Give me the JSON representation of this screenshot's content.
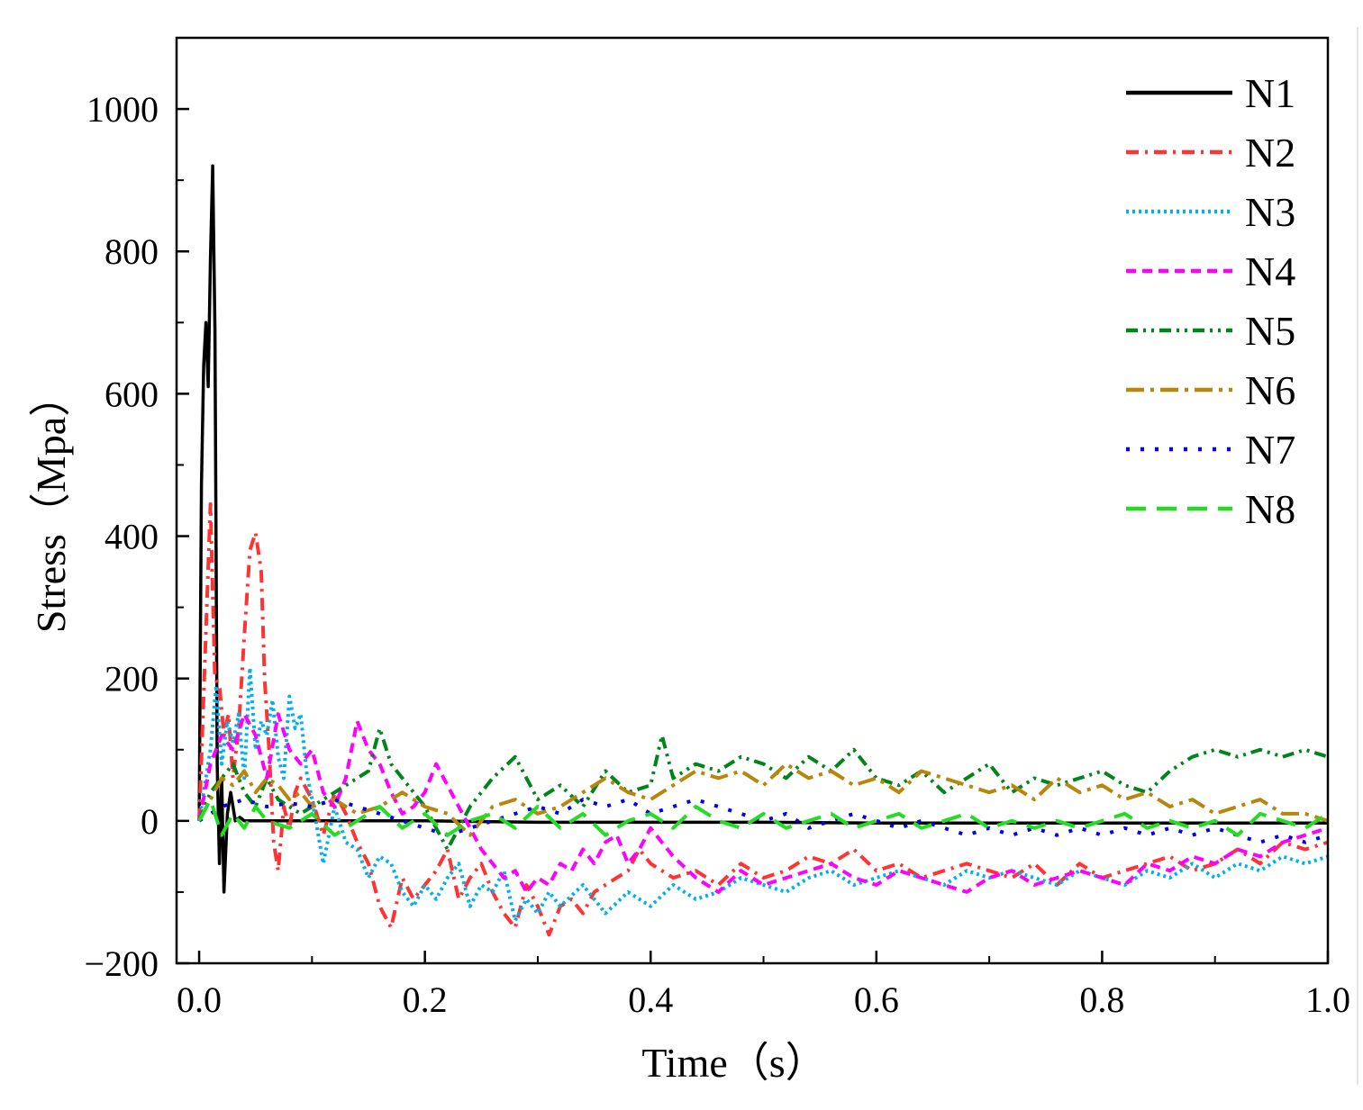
{
  "chart_data": {
    "type": "line",
    "title": "",
    "xlabel": "Time（s）",
    "ylabel": "Stress（Mpa）",
    "xlim": [
      -0.02,
      1.0
    ],
    "ylim": [
      -200,
      1100
    ],
    "x_ticks": [
      0.0,
      0.2,
      0.4,
      0.6,
      0.8,
      1.0
    ],
    "x_tick_labels": [
      "0.0",
      "0.2",
      "0.4",
      "0.6",
      "0.8",
      "1.0"
    ],
    "y_ticks": [
      -200,
      0,
      200,
      400,
      600,
      800,
      1000
    ],
    "y_tick_labels": [
      "−200",
      "0",
      "200",
      "400",
      "600",
      "800",
      "1000"
    ],
    "grid": false,
    "legend_position": "top-right",
    "series": [
      {
        "name": "N1",
        "color": "#000000",
        "dash": "solid",
        "x": [
          0.0,
          0.002,
          0.004,
          0.006,
          0.008,
          0.01,
          0.012,
          0.014,
          0.016,
          0.018,
          0.02,
          0.022,
          0.025,
          0.028,
          0.032,
          0.036,
          0.04,
          0.05,
          0.1,
          0.2,
          0.3,
          0.4,
          0.5,
          0.6,
          0.7,
          0.8,
          0.9,
          1.0
        ],
        "y": [
          0,
          470,
          640,
          700,
          610,
          790,
          920,
          690,
          80,
          -60,
          60,
          -100,
          10,
          40,
          0,
          5,
          0,
          0,
          0,
          0,
          -2,
          -2,
          -2,
          -3,
          -3,
          -3,
          -3,
          -3
        ]
      },
      {
        "name": "N2",
        "color": "#ff3333",
        "dash": "dashdot",
        "x": [
          0.0,
          0.005,
          0.01,
          0.014,
          0.018,
          0.022,
          0.026,
          0.03,
          0.035,
          0.04,
          0.045,
          0.05,
          0.055,
          0.058,
          0.062,
          0.066,
          0.07,
          0.075,
          0.08,
          0.085,
          0.09,
          0.1,
          0.11,
          0.12,
          0.13,
          0.14,
          0.15,
          0.16,
          0.17,
          0.18,
          0.19,
          0.2,
          0.21,
          0.22,
          0.23,
          0.24,
          0.25,
          0.26,
          0.27,
          0.28,
          0.29,
          0.3,
          0.31,
          0.32,
          0.33,
          0.34,
          0.35,
          0.36,
          0.37,
          0.38,
          0.39,
          0.4,
          0.42,
          0.44,
          0.46,
          0.48,
          0.5,
          0.52,
          0.54,
          0.56,
          0.58,
          0.6,
          0.62,
          0.64,
          0.66,
          0.68,
          0.7,
          0.72,
          0.74,
          0.76,
          0.78,
          0.8,
          0.82,
          0.84,
          0.86,
          0.88,
          0.9,
          0.92,
          0.94,
          0.96,
          0.98,
          1.0
        ],
        "y": [
          0,
          220,
          445,
          200,
          190,
          120,
          150,
          60,
          130,
          260,
          380,
          405,
          350,
          200,
          100,
          -30,
          -70,
          20,
          -10,
          40,
          60,
          30,
          -20,
          40,
          10,
          -30,
          -60,
          -120,
          -150,
          -80,
          -110,
          -90,
          -70,
          -40,
          -110,
          -80,
          -60,
          -100,
          -130,
          -150,
          -90,
          -120,
          -160,
          -120,
          -110,
          -130,
          -100,
          -90,
          -80,
          -70,
          -40,
          -60,
          -80,
          -70,
          -90,
          -60,
          -80,
          -70,
          -50,
          -60,
          -40,
          -70,
          -60,
          -80,
          -70,
          -60,
          -70,
          -80,
          -60,
          -90,
          -60,
          -80,
          -70,
          -60,
          -50,
          -70,
          -60,
          -40,
          -60,
          -30,
          -40,
          -30
        ]
      },
      {
        "name": "N3",
        "color": "#00b0f0",
        "dash": "dot",
        "x": [
          0.0,
          0.005,
          0.01,
          0.015,
          0.02,
          0.025,
          0.03,
          0.035,
          0.04,
          0.045,
          0.05,
          0.055,
          0.06,
          0.065,
          0.07,
          0.075,
          0.08,
          0.085,
          0.09,
          0.095,
          0.1,
          0.11,
          0.12,
          0.13,
          0.14,
          0.15,
          0.16,
          0.17,
          0.18,
          0.19,
          0.2,
          0.21,
          0.22,
          0.23,
          0.24,
          0.25,
          0.26,
          0.27,
          0.28,
          0.29,
          0.3,
          0.31,
          0.32,
          0.34,
          0.36,
          0.38,
          0.4,
          0.42,
          0.44,
          0.46,
          0.48,
          0.5,
          0.52,
          0.54,
          0.56,
          0.58,
          0.6,
          0.62,
          0.64,
          0.66,
          0.68,
          0.7,
          0.72,
          0.74,
          0.76,
          0.78,
          0.8,
          0.82,
          0.84,
          0.86,
          0.88,
          0.9,
          0.92,
          0.94,
          0.96,
          0.98,
          1.0
        ],
        "y": [
          0,
          50,
          100,
          190,
          80,
          140,
          110,
          150,
          60,
          215,
          100,
          140,
          120,
          170,
          90,
          60,
          175,
          130,
          150,
          70,
          30,
          -60,
          20,
          -30,
          -40,
          -80,
          -50,
          -60,
          -100,
          -120,
          -90,
          -110,
          -80,
          -60,
          -120,
          -90,
          -100,
          -70,
          -140,
          -110,
          -130,
          -100,
          -120,
          -90,
          -130,
          -100,
          -120,
          -90,
          -110,
          -100,
          -80,
          -90,
          -100,
          -80,
          -70,
          -90,
          -80,
          -70,
          -80,
          -90,
          -70,
          -80,
          -70,
          -80,
          -90,
          -70,
          -80,
          -90,
          -70,
          -80,
          -60,
          -80,
          -60,
          -70,
          -50,
          -60,
          -50
        ]
      },
      {
        "name": "N4",
        "color": "#ff00ff",
        "dash": "dash",
        "x": [
          0.0,
          0.01,
          0.02,
          0.03,
          0.04,
          0.05,
          0.06,
          0.07,
          0.08,
          0.09,
          0.1,
          0.11,
          0.12,
          0.13,
          0.14,
          0.15,
          0.16,
          0.17,
          0.18,
          0.19,
          0.2,
          0.21,
          0.22,
          0.23,
          0.24,
          0.25,
          0.26,
          0.27,
          0.28,
          0.29,
          0.3,
          0.31,
          0.32,
          0.33,
          0.34,
          0.35,
          0.36,
          0.37,
          0.38,
          0.39,
          0.4,
          0.42,
          0.44,
          0.46,
          0.48,
          0.5,
          0.52,
          0.54,
          0.56,
          0.58,
          0.6,
          0.62,
          0.64,
          0.66,
          0.68,
          0.7,
          0.72,
          0.74,
          0.76,
          0.78,
          0.8,
          0.82,
          0.84,
          0.86,
          0.88,
          0.9,
          0.92,
          0.94,
          0.96,
          0.98,
          1.0
        ],
        "y": [
          0,
          80,
          120,
          100,
          150,
          120,
          60,
          150,
          100,
          80,
          100,
          40,
          20,
          60,
          140,
          100,
          80,
          40,
          10,
          20,
          40,
          80,
          50,
          20,
          -10,
          -40,
          -60,
          -80,
          -70,
          -100,
          -80,
          -90,
          -60,
          -70,
          -40,
          -60,
          -30,
          -20,
          -60,
          -40,
          -10,
          -50,
          -80,
          -100,
          -70,
          -90,
          -80,
          -70,
          -60,
          -80,
          -90,
          -70,
          -80,
          -90,
          -100,
          -80,
          -70,
          -90,
          -80,
          -70,
          -80,
          -90,
          -60,
          -70,
          -50,
          -60,
          -40,
          -50,
          -30,
          -20,
          -10
        ]
      },
      {
        "name": "N5",
        "color": "#00851a",
        "dash": "dashdotdot",
        "x": [
          0.0,
          0.01,
          0.02,
          0.03,
          0.04,
          0.05,
          0.06,
          0.07,
          0.08,
          0.09,
          0.1,
          0.11,
          0.12,
          0.13,
          0.14,
          0.15,
          0.16,
          0.17,
          0.18,
          0.19,
          0.2,
          0.22,
          0.24,
          0.26,
          0.28,
          0.3,
          0.32,
          0.34,
          0.36,
          0.38,
          0.4,
          0.41,
          0.42,
          0.44,
          0.46,
          0.48,
          0.5,
          0.52,
          0.54,
          0.56,
          0.58,
          0.6,
          0.62,
          0.64,
          0.66,
          0.68,
          0.7,
          0.72,
          0.74,
          0.76,
          0.78,
          0.8,
          0.82,
          0.84,
          0.86,
          0.88,
          0.9,
          0.92,
          0.94,
          0.96,
          0.98,
          1.0
        ],
        "y": [
          0,
          40,
          60,
          80,
          40,
          20,
          60,
          30,
          20,
          10,
          20,
          30,
          40,
          50,
          60,
          70,
          130,
          80,
          60,
          40,
          20,
          -40,
          20,
          60,
          90,
          30,
          50,
          20,
          70,
          40,
          50,
          120,
          60,
          80,
          70,
          90,
          80,
          60,
          90,
          70,
          100,
          60,
          50,
          70,
          40,
          60,
          80,
          40,
          60,
          50,
          60,
          70,
          50,
          40,
          70,
          90,
          100,
          90,
          100,
          90,
          100,
          90
        ]
      },
      {
        "name": "N6",
        "color": "#b8860b",
        "dash": "longdashdot",
        "x": [
          0.0,
          0.01,
          0.02,
          0.03,
          0.04,
          0.05,
          0.06,
          0.07,
          0.08,
          0.09,
          0.1,
          0.12,
          0.14,
          0.16,
          0.18,
          0.2,
          0.22,
          0.24,
          0.26,
          0.28,
          0.3,
          0.32,
          0.34,
          0.36,
          0.38,
          0.4,
          0.42,
          0.44,
          0.46,
          0.48,
          0.5,
          0.52,
          0.54,
          0.56,
          0.58,
          0.6,
          0.62,
          0.64,
          0.66,
          0.68,
          0.7,
          0.72,
          0.74,
          0.76,
          0.78,
          0.8,
          0.82,
          0.84,
          0.86,
          0.88,
          0.9,
          0.92,
          0.94,
          0.96,
          0.98,
          1.0
        ],
        "y": [
          0,
          30,
          60,
          50,
          70,
          40,
          60,
          50,
          30,
          40,
          20,
          30,
          10,
          20,
          40,
          20,
          10,
          -20,
          20,
          30,
          10,
          20,
          40,
          60,
          40,
          30,
          50,
          70,
          60,
          70,
          50,
          80,
          60,
          70,
          50,
          60,
          40,
          70,
          60,
          50,
          40,
          50,
          30,
          60,
          40,
          50,
          30,
          40,
          20,
          30,
          10,
          20,
          30,
          10,
          10,
          0
        ]
      },
      {
        "name": "N7",
        "color": "#0000ee",
        "dash": "sparsedot",
        "x": [
          0.0,
          0.02,
          0.04,
          0.06,
          0.08,
          0.1,
          0.12,
          0.14,
          0.16,
          0.18,
          0.2,
          0.22,
          0.24,
          0.26,
          0.28,
          0.3,
          0.32,
          0.34,
          0.36,
          0.38,
          0.4,
          0.42,
          0.44,
          0.46,
          0.48,
          0.5,
          0.52,
          0.54,
          0.56,
          0.58,
          0.6,
          0.62,
          0.64,
          0.66,
          0.68,
          0.7,
          0.72,
          0.74,
          0.76,
          0.78,
          0.8,
          0.82,
          0.84,
          0.86,
          0.88,
          0.9,
          0.92,
          0.94,
          0.96,
          0.98,
          1.0
        ],
        "y": [
          0,
          20,
          30,
          20,
          25,
          20,
          30,
          20,
          10,
          0,
          -10,
          -20,
          -10,
          0,
          10,
          20,
          10,
          30,
          20,
          30,
          10,
          20,
          30,
          20,
          10,
          0,
          10,
          -10,
          0,
          10,
          0,
          -10,
          0,
          -10,
          -20,
          -10,
          -20,
          -10,
          -20,
          -10,
          -20,
          -10,
          -20,
          -10,
          -20,
          -10,
          -20,
          -30,
          -20,
          -30,
          -20
        ]
      },
      {
        "name": "N8",
        "color": "#22dd22",
        "dash": "longdash",
        "x": [
          0.0,
          0.01,
          0.02,
          0.03,
          0.04,
          0.05,
          0.06,
          0.08,
          0.1,
          0.12,
          0.14,
          0.16,
          0.18,
          0.2,
          0.22,
          0.24,
          0.26,
          0.28,
          0.3,
          0.32,
          0.34,
          0.36,
          0.38,
          0.4,
          0.42,
          0.44,
          0.46,
          0.48,
          0.5,
          0.52,
          0.54,
          0.56,
          0.58,
          0.6,
          0.62,
          0.64,
          0.66,
          0.68,
          0.7,
          0.72,
          0.74,
          0.76,
          0.78,
          0.8,
          0.82,
          0.84,
          0.86,
          0.88,
          0.9,
          0.92,
          0.94,
          0.96,
          0.98,
          1.0
        ],
        "y": [
          0,
          30,
          -20,
          10,
          -10,
          20,
          0,
          -10,
          10,
          -20,
          0,
          20,
          -10,
          10,
          -20,
          0,
          10,
          -10,
          20,
          -10,
          10,
          -20,
          0,
          10,
          -10,
          20,
          0,
          -10,
          10,
          -10,
          0,
          10,
          -10,
          0,
          10,
          -10,
          0,
          10,
          -10,
          0,
          -10,
          0,
          -10,
          0,
          10,
          -10,
          0,
          -10,
          0,
          -20,
          10,
          0,
          -10,
          10
        ]
      }
    ]
  }
}
